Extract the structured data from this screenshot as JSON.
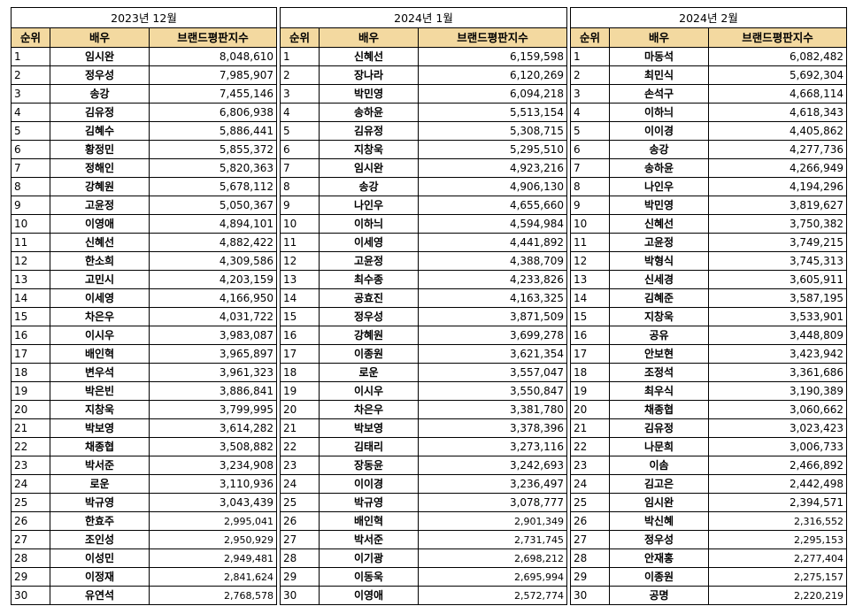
{
  "headers": {
    "rank": "순위",
    "actor": "배우",
    "score": "브랜드평판지수"
  },
  "panels": [
    {
      "title": "2023년 12월",
      "rows": [
        [
          "1",
          "임시완",
          "8,048,610"
        ],
        [
          "2",
          "정우성",
          "7,985,907"
        ],
        [
          "3",
          "송강",
          "7,455,146"
        ],
        [
          "4",
          "김유정",
          "6,806,938"
        ],
        [
          "5",
          "김혜수",
          "5,886,441"
        ],
        [
          "6",
          "황정민",
          "5,855,372"
        ],
        [
          "7",
          "정해인",
          "5,820,363"
        ],
        [
          "8",
          "강혜원",
          "5,678,112"
        ],
        [
          "9",
          "고윤정",
          "5,050,367"
        ],
        [
          "10",
          "이영애",
          "4,894,101"
        ],
        [
          "11",
          "신혜선",
          "4,882,422"
        ],
        [
          "12",
          "한소희",
          "4,309,586"
        ],
        [
          "13",
          "고민시",
          "4,203,159"
        ],
        [
          "14",
          "이세영",
          "4,166,950"
        ],
        [
          "15",
          "차은우",
          "4,031,722"
        ],
        [
          "16",
          "이시우",
          "3,983,087"
        ],
        [
          "17",
          "배인혁",
          "3,965,897"
        ],
        [
          "18",
          "변우석",
          "3,961,323"
        ],
        [
          "19",
          "박은빈",
          "3,886,841"
        ],
        [
          "20",
          "지창욱",
          "3,799,995"
        ],
        [
          "21",
          "박보영",
          "3,614,282"
        ],
        [
          "22",
          "채종협",
          "3,508,882"
        ],
        [
          "23",
          "박서준",
          "3,234,908"
        ],
        [
          "24",
          "로운",
          "3,110,936"
        ],
        [
          "25",
          "박규영",
          "3,043,439"
        ],
        [
          "26",
          "한효주",
          "2,995,041"
        ],
        [
          "27",
          "조인성",
          "2,950,929"
        ],
        [
          "28",
          "이성민",
          "2,949,481"
        ],
        [
          "29",
          "이정재",
          "2,841,624"
        ],
        [
          "30",
          "유연석",
          "2,768,578"
        ]
      ]
    },
    {
      "title": "2024년 1월",
      "rows": [
        [
          "1",
          "신혜선",
          "6,159,598"
        ],
        [
          "2",
          "장나라",
          "6,120,269"
        ],
        [
          "3",
          "박민영",
          "6,094,218"
        ],
        [
          "4",
          "송하윤",
          "5,513,154"
        ],
        [
          "5",
          "김유정",
          "5,308,715"
        ],
        [
          "6",
          "지창욱",
          "5,295,510"
        ],
        [
          "7",
          "임시완",
          "4,923,216"
        ],
        [
          "8",
          "송강",
          "4,906,130"
        ],
        [
          "9",
          "나인우",
          "4,655,660"
        ],
        [
          "10",
          "이하늬",
          "4,594,984"
        ],
        [
          "11",
          "이세영",
          "4,441,892"
        ],
        [
          "12",
          "고윤정",
          "4,388,709"
        ],
        [
          "13",
          "최수종",
          "4,233,826"
        ],
        [
          "14",
          "공효진",
          "4,163,325"
        ],
        [
          "15",
          "정우성",
          "3,871,509"
        ],
        [
          "16",
          "강혜원",
          "3,699,278"
        ],
        [
          "17",
          "이종원",
          "3,621,354"
        ],
        [
          "18",
          "로운",
          "3,557,047"
        ],
        [
          "19",
          "이시우",
          "3,550,847"
        ],
        [
          "20",
          "차은우",
          "3,381,780"
        ],
        [
          "21",
          "박보영",
          "3,378,396"
        ],
        [
          "22",
          "김태리",
          "3,273,116"
        ],
        [
          "23",
          "장동윤",
          "3,242,693"
        ],
        [
          "24",
          "이이경",
          "3,236,497"
        ],
        [
          "25",
          "박규영",
          "3,078,777"
        ],
        [
          "26",
          "배인혁",
          "2,901,349"
        ],
        [
          "27",
          "박서준",
          "2,731,745"
        ],
        [
          "28",
          "이기광",
          "2,698,212"
        ],
        [
          "29",
          "이동욱",
          "2,695,994"
        ],
        [
          "30",
          "이영애",
          "2,572,774"
        ]
      ]
    },
    {
      "title": "2024년 2월",
      "rows": [
        [
          "1",
          "마동석",
          "6,082,482"
        ],
        [
          "2",
          "최민식",
          "5,692,304"
        ],
        [
          "3",
          "손석구",
          "4,668,114"
        ],
        [
          "4",
          "이하늬",
          "4,618,343"
        ],
        [
          "5",
          "이이경",
          "4,405,862"
        ],
        [
          "6",
          "송강",
          "4,277,736"
        ],
        [
          "7",
          "송하윤",
          "4,266,949"
        ],
        [
          "8",
          "나인우",
          "4,194,296"
        ],
        [
          "9",
          "박민영",
          "3,819,627"
        ],
        [
          "10",
          "신혜선",
          "3,750,382"
        ],
        [
          "11",
          "고윤정",
          "3,749,215"
        ],
        [
          "12",
          "박형식",
          "3,745,313"
        ],
        [
          "13",
          "신세경",
          "3,605,911"
        ],
        [
          "14",
          "김혜준",
          "3,587,195"
        ],
        [
          "15",
          "지창욱",
          "3,533,901"
        ],
        [
          "16",
          "공유",
          "3,448,809"
        ],
        [
          "17",
          "안보현",
          "3,423,942"
        ],
        [
          "18",
          "조정석",
          "3,361,686"
        ],
        [
          "19",
          "최우식",
          "3,190,389"
        ],
        [
          "20",
          "채종협",
          "3,060,662"
        ],
        [
          "21",
          "김유정",
          "3,023,423"
        ],
        [
          "22",
          "나문희",
          "3,006,733"
        ],
        [
          "23",
          "이솜",
          "2,466,892"
        ],
        [
          "24",
          "김고은",
          "2,442,498"
        ],
        [
          "25",
          "임시완",
          "2,394,571"
        ],
        [
          "26",
          "박신혜",
          "2,316,552"
        ],
        [
          "27",
          "정우성",
          "2,295,153"
        ],
        [
          "28",
          "안재홍",
          "2,277,404"
        ],
        [
          "29",
          "이종원",
          "2,275,157"
        ],
        [
          "30",
          "공명",
          "2,220,219"
        ]
      ]
    }
  ]
}
